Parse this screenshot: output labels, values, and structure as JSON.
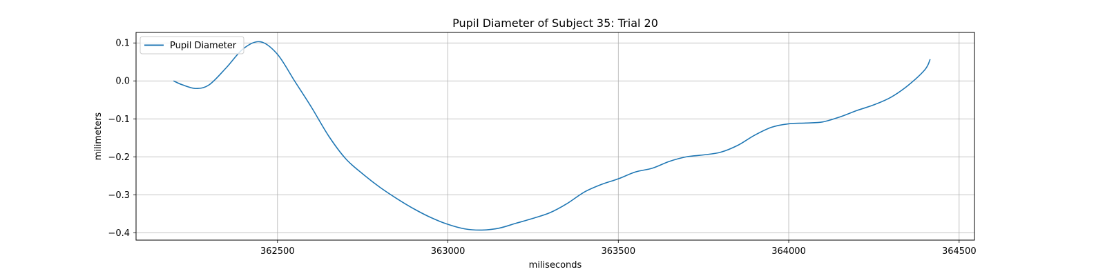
{
  "chart_data": {
    "type": "line",
    "title": "Pupil Diameter of Subject 35: Trial 20",
    "xlabel": "miliseconds",
    "ylabel": "milimeters",
    "xlim": [
      362085,
      364545
    ],
    "ylim": [
      -0.4195,
      0.1277
    ],
    "xticks": [
      362500,
      363000,
      363500,
      364000,
      364500
    ],
    "yticks": [
      0.1,
      0.0,
      -0.1,
      -0.2,
      -0.3,
      -0.4
    ],
    "grid": true,
    "legend_position": "top-left",
    "series": [
      {
        "name": "Pupil Diameter",
        "color": "#1f77b4",
        "x": [
          362195,
          362220,
          362260,
          362300,
          362350,
          362400,
          362450,
          362500,
          362550,
          362600,
          362650,
          362700,
          362750,
          362800,
          362850,
          362900,
          362950,
          363000,
          363050,
          363100,
          363150,
          363200,
          363250,
          363300,
          363350,
          363400,
          363450,
          363500,
          363550,
          363600,
          363650,
          363700,
          363750,
          363800,
          363850,
          363900,
          363950,
          364000,
          364050,
          364100,
          364150,
          364200,
          364250,
          364300,
          364350,
          364400,
          364415
        ],
        "y": [
          0.0,
          -0.01,
          -0.02,
          -0.01,
          0.035,
          0.085,
          0.103,
          0.07,
          0.0,
          -0.07,
          -0.145,
          -0.205,
          -0.245,
          -0.28,
          -0.31,
          -0.337,
          -0.36,
          -0.378,
          -0.39,
          -0.393,
          -0.388,
          -0.375,
          -0.362,
          -0.347,
          -0.323,
          -0.293,
          -0.273,
          -0.258,
          -0.24,
          -0.23,
          -0.212,
          -0.2,
          -0.195,
          -0.188,
          -0.17,
          -0.143,
          -0.122,
          -0.113,
          -0.111,
          -0.108,
          -0.095,
          -0.078,
          -0.063,
          -0.043,
          -0.012,
          0.03,
          0.057
        ]
      }
    ]
  }
}
